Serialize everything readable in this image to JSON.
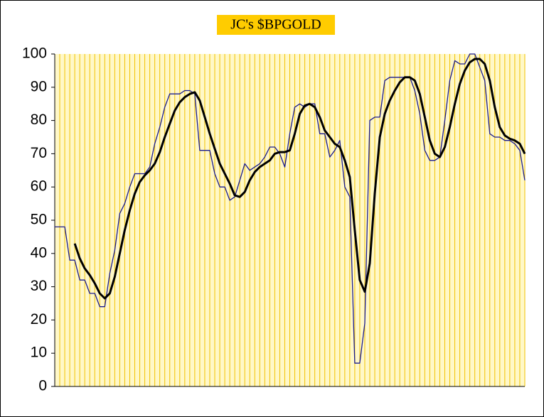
{
  "chart_data": {
    "type": "line",
    "title": "JC's $BPGOLD",
    "categories": [
      null,
      null,
      null,
      null,
      null,
      null,
      null,
      null,
      null,
      null,
      null,
      null,
      null,
      null,
      null,
      null,
      null,
      null,
      null,
      null,
      null,
      null,
      null,
      null,
      null,
      null,
      null,
      null,
      null,
      null,
      null,
      null,
      null,
      null,
      null,
      null,
      null,
      null,
      null,
      null,
      null,
      null,
      null,
      null,
      null,
      null,
      null,
      null,
      null,
      null,
      null,
      null,
      null,
      null,
      null,
      null,
      null,
      null,
      null,
      null,
      null,
      null,
      null,
      null,
      null,
      null,
      null,
      null,
      null,
      null,
      null,
      null,
      null,
      null,
      null,
      null,
      null,
      null,
      null,
      null,
      null,
      null,
      null,
      null,
      null,
      null,
      null,
      null,
      null,
      null,
      null,
      null,
      null,
      null,
      null
    ],
    "series": [
      {
        "color": "#1a1a8c",
        "values": [
          48,
          48,
          48,
          38,
          38,
          32,
          32,
          28,
          28,
          24,
          24,
          34,
          41,
          52,
          55,
          60,
          64,
          64,
          64,
          66,
          73,
          78,
          84,
          88,
          88,
          88,
          89,
          89,
          88,
          71,
          71,
          71,
          64,
          60,
          60,
          56,
          57,
          62,
          67,
          65,
          66,
          67,
          69,
          72,
          72,
          70,
          66,
          76,
          84,
          85,
          84,
          85,
          85,
          76,
          76,
          69,
          71,
          74,
          60,
          57,
          7,
          7,
          19,
          80,
          81,
          81,
          92,
          93,
          93,
          93,
          93,
          93,
          89,
          82,
          71,
          68,
          68,
          69,
          80,
          92,
          98,
          97,
          97,
          100,
          100,
          96,
          92,
          76,
          75,
          75,
          74,
          74,
          73,
          71,
          62
        ]
      },
      {
        "color": "#000000",
        "values": [
          null,
          null,
          null,
          null,
          43,
          38.5,
          35.5,
          33.5,
          31,
          28,
          26.5,
          28,
          33,
          40,
          47,
          53,
          58,
          61.5,
          63.5,
          65,
          67,
          70.5,
          75,
          79,
          83,
          85.5,
          87,
          88,
          88.5,
          86,
          81,
          76,
          71.5,
          67,
          64,
          61,
          57.5,
          57,
          58.5,
          62,
          64.5,
          66,
          67,
          68,
          70,
          70.5,
          70.5,
          71,
          76,
          82,
          84.5,
          85,
          84,
          81,
          77,
          75,
          73,
          72,
          68,
          63,
          47,
          32,
          28.5,
          37,
          58,
          75,
          82,
          86,
          89,
          91.5,
          93,
          93,
          92,
          88,
          81,
          74,
          70,
          69,
          72,
          78,
          85,
          91,
          95,
          97.5,
          98.5,
          98.5,
          97,
          92,
          84,
          78,
          75.5,
          74.5,
          74,
          73,
          70
        ]
      }
    ],
    "ylim": [
      0,
      100
    ],
    "yticks": [
      0,
      10,
      20,
      30,
      40,
      50,
      60,
      70,
      80,
      90,
      100
    ],
    "grid": true
  }
}
